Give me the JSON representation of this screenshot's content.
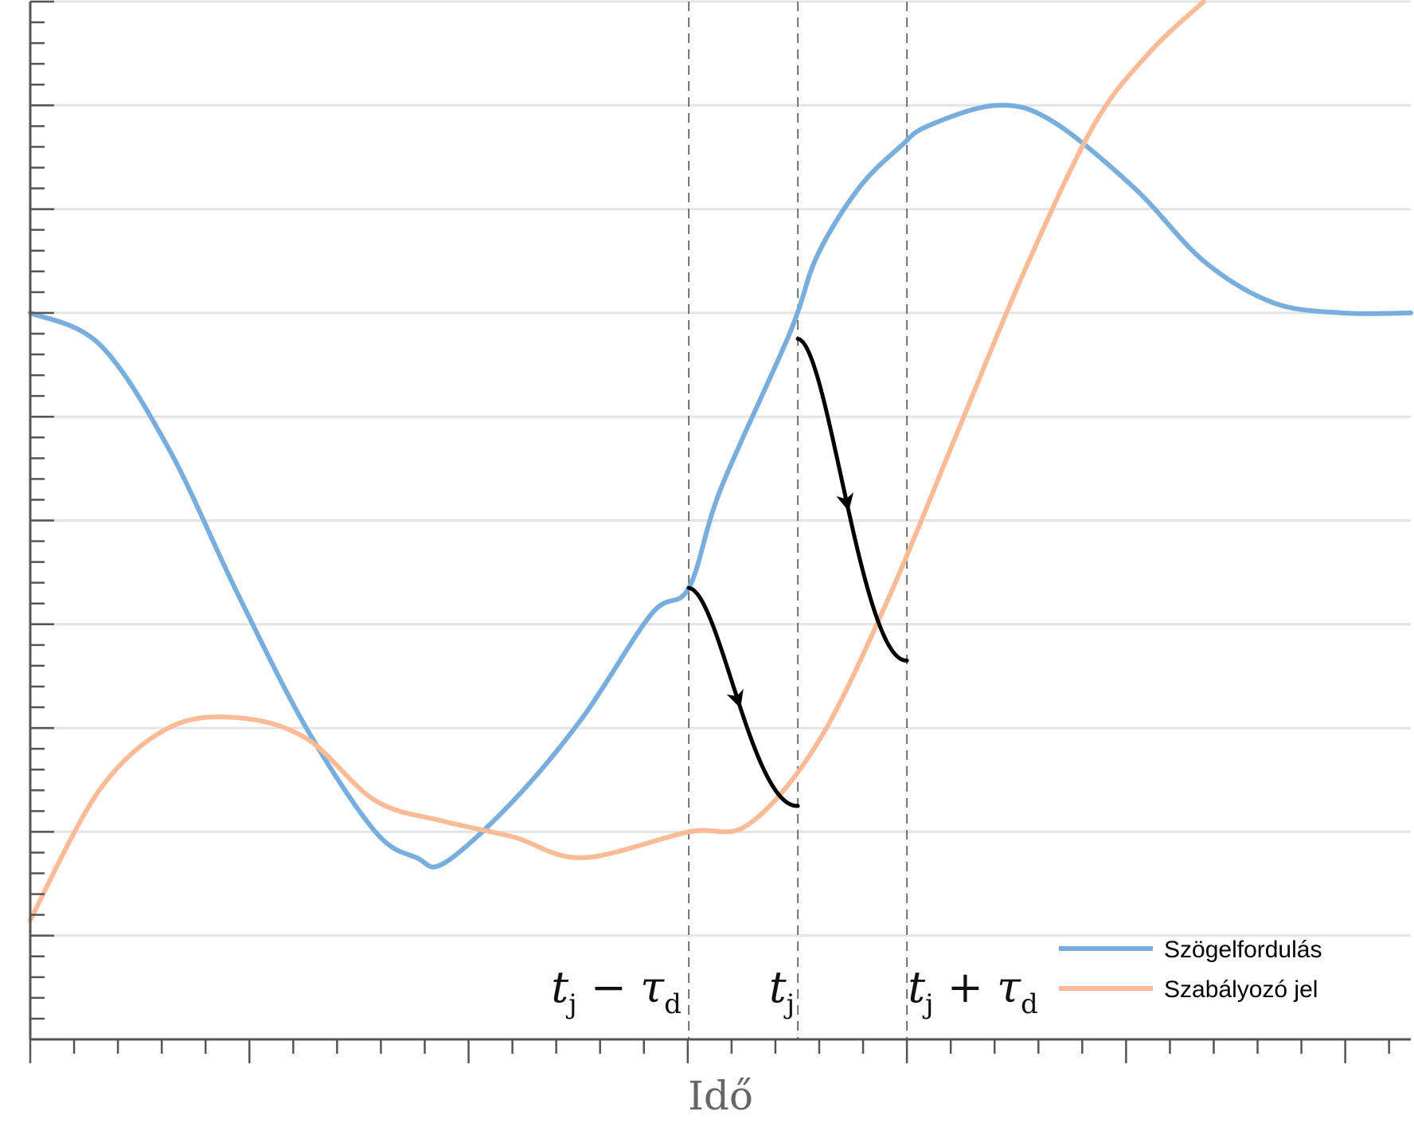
{
  "chart_data": {
    "type": "line",
    "title": "",
    "xlabel": "Idő",
    "ylabel": "",
    "xlim": [
      0,
      100
    ],
    "ylim": [
      0,
      100
    ],
    "grid": {
      "horizontal": true,
      "vertical": false
    },
    "legend_position": "bottom-right",
    "colors": {
      "blue": "#78aede",
      "orange": "#fbbb97",
      "arrow": "#000000",
      "axis": "#555555"
    },
    "series": [
      {
        "name": "Szögelfordulás",
        "color": "#78aede",
        "points": [
          [
            0,
            70
          ],
          [
            5,
            67
          ],
          [
            10,
            57
          ],
          [
            15,
            43
          ],
          [
            20,
            30
          ],
          [
            25,
            20
          ],
          [
            28,
            17.5
          ],
          [
            30,
            17
          ],
          [
            35,
            23
          ],
          [
            40,
            31
          ],
          [
            45,
            41
          ],
          [
            47.7,
            43.5
          ],
          [
            50,
            53
          ],
          [
            55,
            68
          ],
          [
            57,
            75.5
          ],
          [
            60,
            82
          ],
          [
            63,
            86
          ],
          [
            65,
            88
          ],
          [
            70,
            90
          ],
          [
            74,
            88.5
          ],
          [
            80,
            82
          ],
          [
            85,
            75
          ],
          [
            90,
            71
          ],
          [
            95,
            70
          ],
          [
            100,
            70
          ]
        ]
      },
      {
        "name": "Szabályozó jel",
        "color": "#fbbb97",
        "points": [
          [
            0,
            11.5
          ],
          [
            5,
            24
          ],
          [
            10,
            30
          ],
          [
            15,
            31
          ],
          [
            20,
            29
          ],
          [
            25,
            23
          ],
          [
            30,
            21
          ],
          [
            35,
            19.5
          ],
          [
            40,
            17.5
          ],
          [
            47.7,
            20
          ],
          [
            52,
            20.7
          ],
          [
            57,
            28.5
          ],
          [
            62,
            42
          ],
          [
            67,
            58
          ],
          [
            72,
            74
          ],
          [
            77,
            88
          ],
          [
            81,
            95
          ],
          [
            85,
            100
          ]
        ]
      }
    ],
    "guides": [
      {
        "x": 47.7,
        "label": "t",
        "sub": "j",
        "suffix": " − τ",
        "suffix_sub": "d"
      },
      {
        "x": 55.6,
        "label": "t",
        "sub": "j",
        "suffix": "",
        "suffix_sub": ""
      },
      {
        "x": 63.5,
        "label": "t",
        "sub": "j",
        "suffix": " + τ",
        "suffix_sub": "d"
      }
    ],
    "delay_arrows": [
      {
        "from": [
          47.7,
          43.5
        ],
        "to": [
          55.6,
          22.5
        ]
      },
      {
        "from": [
          55.6,
          67.5
        ],
        "to": [
          63.5,
          36.5
        ]
      }
    ]
  }
}
